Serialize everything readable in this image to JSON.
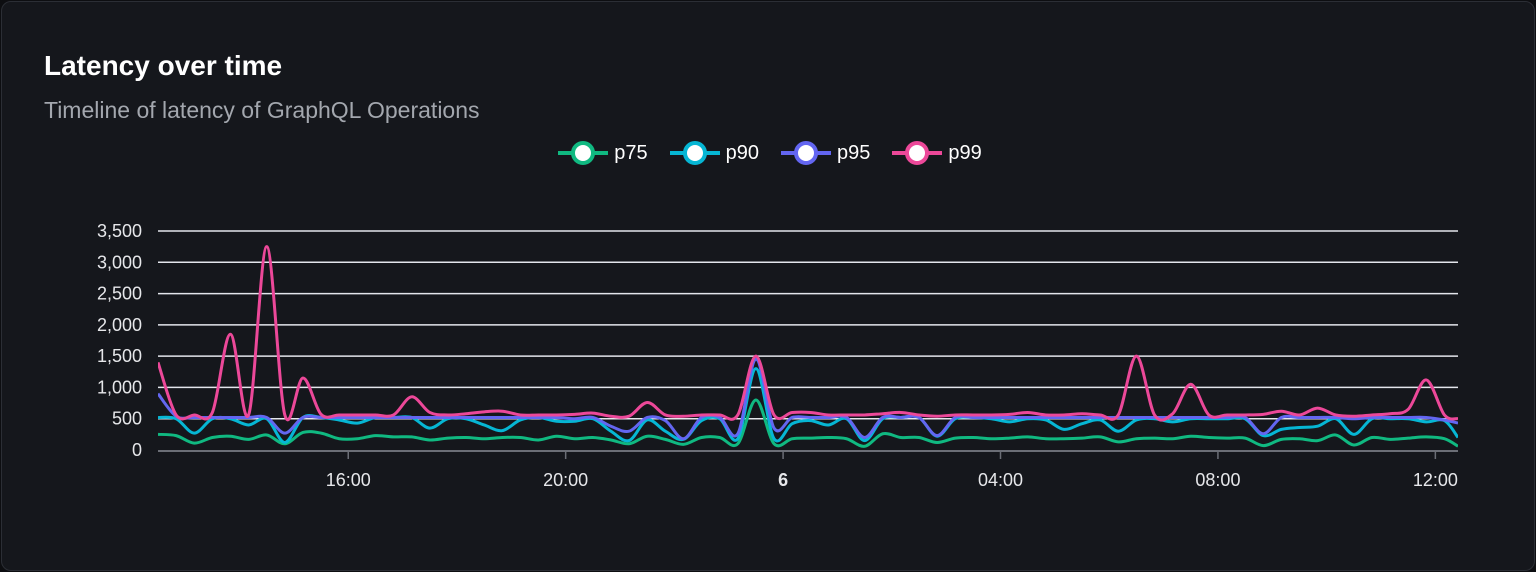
{
  "card": {
    "title": "Latency over time",
    "subtitle": "Timeline of latency of GraphQL Operations"
  },
  "chart_data": {
    "type": "line",
    "title": "Latency over time",
    "subtitle": "Timeline of latency of GraphQL Operations",
    "legend_position": "top-center",
    "grid": true,
    "ylim": [
      0,
      3500
    ],
    "y_ticks": [
      "0",
      "500",
      "1,000",
      "1,500",
      "2,000",
      "2,500",
      "3,000",
      "3,500"
    ],
    "y_tick_values": [
      0,
      500,
      1000,
      1500,
      2000,
      2500,
      3000,
      3500
    ],
    "x_range": [
      "12:30",
      "12:25"
    ],
    "x_ticks": [
      {
        "label": "16:00",
        "time": "16:00",
        "bold": false
      },
      {
        "label": "20:00",
        "time": "20:00",
        "bold": false
      },
      {
        "label": "6",
        "time": "00:00",
        "bold": true
      },
      {
        "label": "04:00",
        "time": "04:00",
        "bold": false
      },
      {
        "label": "08:00",
        "time": "08:00",
        "bold": false
      },
      {
        "label": "12:00",
        "time": "12:00",
        "bold": false
      }
    ],
    "x": [
      "12:30",
      "12:50",
      "13:10",
      "13:30",
      "13:50",
      "14:10",
      "14:30",
      "14:50",
      "15:10",
      "15:30",
      "15:50",
      "16:10",
      "16:30",
      "16:50",
      "17:10",
      "17:30",
      "17:50",
      "18:10",
      "18:30",
      "18:50",
      "19:10",
      "19:30",
      "19:50",
      "20:10",
      "20:30",
      "20:50",
      "21:10",
      "21:30",
      "21:50",
      "22:10",
      "22:30",
      "22:50",
      "23:10",
      "23:30",
      "23:50",
      "00:10",
      "00:30",
      "00:50",
      "01:10",
      "01:30",
      "01:50",
      "02:10",
      "02:30",
      "02:50",
      "03:10",
      "03:30",
      "03:50",
      "04:10",
      "04:30",
      "04:50",
      "05:10",
      "05:30",
      "05:50",
      "06:10",
      "06:30",
      "06:50",
      "07:10",
      "07:30",
      "07:50",
      "08:10",
      "08:30",
      "08:50",
      "09:10",
      "09:30",
      "09:50",
      "10:10",
      "10:30",
      "10:50",
      "11:10",
      "11:30",
      "11:50",
      "12:10",
      "12:25"
    ],
    "series": [
      {
        "name": "p75",
        "color": "#10b981",
        "values": [
          250,
          230,
          110,
          200,
          220,
          170,
          240,
          100,
          280,
          270,
          180,
          180,
          230,
          210,
          210,
          160,
          190,
          200,
          180,
          200,
          200,
          160,
          220,
          180,
          200,
          160,
          100,
          220,
          170,
          90,
          200,
          200,
          100,
          800,
          100,
          180,
          190,
          200,
          180,
          60,
          260,
          200,
          200,
          120,
          190,
          200,
          180,
          190,
          210,
          180,
          180,
          190,
          210,
          130,
          180,
          190,
          180,
          220,
          200,
          190,
          190,
          70,
          170,
          180,
          150,
          240,
          80,
          200,
          170,
          190,
          210,
          180,
          60
        ]
      },
      {
        "name": "p90",
        "color": "#06b6d4",
        "values": [
          520,
          500,
          270,
          500,
          500,
          400,
          500,
          120,
          520,
          520,
          480,
          430,
          520,
          520,
          520,
          350,
          500,
          500,
          400,
          310,
          480,
          520,
          460,
          460,
          500,
          300,
          150,
          480,
          300,
          170,
          470,
          500,
          180,
          1300,
          180,
          420,
          470,
          400,
          500,
          150,
          500,
          520,
          520,
          220,
          500,
          520,
          500,
          450,
          500,
          480,
          330,
          420,
          480,
          300,
          480,
          500,
          450,
          500,
          500,
          500,
          500,
          230,
          330,
          360,
          380,
          500,
          250,
          500,
          500,
          500,
          450,
          470,
          200
        ]
      },
      {
        "name": "p95",
        "color": "#6366f1",
        "values": [
          900,
          540,
          520,
          520,
          520,
          520,
          520,
          270,
          520,
          520,
          520,
          520,
          520,
          520,
          520,
          520,
          520,
          520,
          520,
          520,
          520,
          520,
          520,
          500,
          520,
          380,
          300,
          520,
          470,
          180,
          520,
          520,
          260,
          1450,
          350,
          520,
          520,
          520,
          520,
          200,
          520,
          520,
          520,
          230,
          520,
          520,
          520,
          520,
          520,
          520,
          520,
          520,
          520,
          520,
          520,
          520,
          520,
          520,
          520,
          520,
          520,
          260,
          520,
          520,
          520,
          520,
          500,
          520,
          520,
          520,
          520,
          480,
          430
        ]
      },
      {
        "name": "p99",
        "color": "#ec4899",
        "values": [
          1400,
          560,
          560,
          600,
          1850,
          560,
          3250,
          560,
          1150,
          570,
          560,
          560,
          560,
          560,
          850,
          600,
          560,
          580,
          610,
          620,
          560,
          560,
          560,
          570,
          590,
          540,
          540,
          760,
          560,
          540,
          560,
          560,
          560,
          1500,
          560,
          600,
          600,
          560,
          560,
          560,
          580,
          600,
          560,
          540,
          560,
          560,
          560,
          570,
          600,
          560,
          560,
          580,
          560,
          560,
          1500,
          560,
          580,
          1050,
          560,
          560,
          560,
          570,
          620,
          560,
          670,
          560,
          540,
          560,
          580,
          650,
          1120,
          560,
          500
        ]
      }
    ]
  }
}
